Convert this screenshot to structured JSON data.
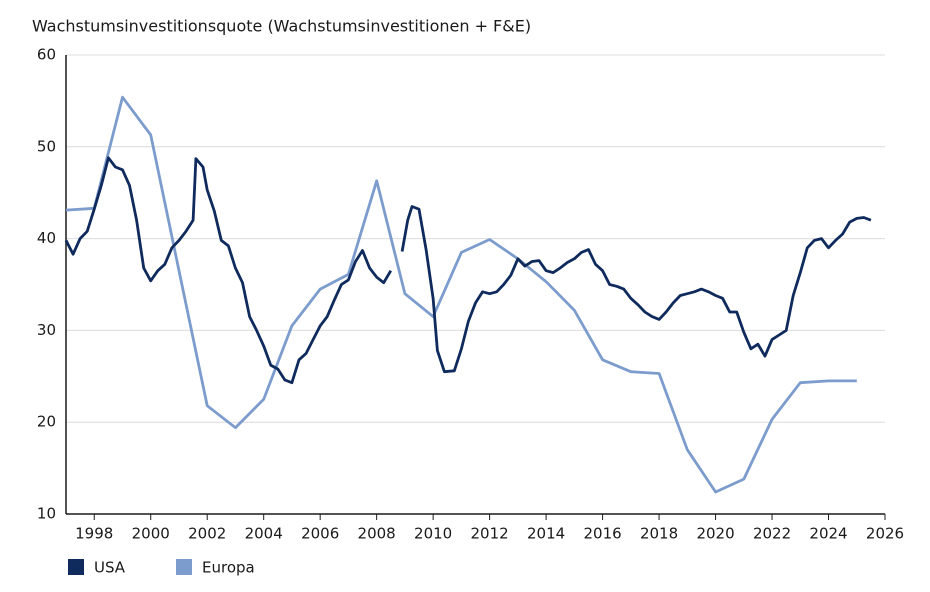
{
  "chart_data": {
    "type": "line",
    "title": "Wachstumsinvestitionsquote (Wachstumsinvestitionen + F&E)",
    "xlim": [
      1997,
      2026
    ],
    "xticks": [
      1998,
      2000,
      2002,
      2004,
      2006,
      2008,
      2010,
      2012,
      2014,
      2016,
      2018,
      2020,
      2022,
      2024,
      2026
    ],
    "ylim": [
      10,
      60
    ],
    "yticks": [
      10,
      20,
      30,
      40,
      50,
      60
    ],
    "grid": true,
    "series": [
      {
        "name": "USA",
        "color": "#0f2a5c",
        "x": [
          1997.0,
          1997.25,
          1997.5,
          1997.75,
          1998.0,
          1998.25,
          1998.5,
          1998.75,
          1999.0,
          1999.25,
          1999.5,
          1999.75,
          2000.0,
          2000.25,
          2000.5,
          2000.75,
          2001.0,
          2001.25,
          2001.5,
          2001.6,
          2001.85,
          2002.0,
          2002.25,
          2002.5,
          2002.75,
          2003.0,
          2003.25,
          2003.5,
          2003.75,
          2004.0,
          2004.25,
          2004.5,
          2004.75,
          2005.0,
          2005.25,
          2005.5,
          2005.75,
          2006.0,
          2006.25,
          2006.5,
          2006.75,
          2007.0,
          2007.25,
          2007.5,
          2007.75,
          2008.0,
          2008.25,
          2008.5,
          2008.75,
          2008.9,
          2009.1,
          2009.25,
          2009.5,
          2009.75,
          2010.0,
          2010.15,
          2010.4,
          2010.75,
          2011.0,
          2011.25,
          2011.5,
          2011.75,
          2012.0,
          2012.25,
          2012.5,
          2012.75,
          2013.0,
          2013.25,
          2013.5,
          2013.75,
          2014.0,
          2014.25,
          2014.5,
          2014.75,
          2015.0,
          2015.25,
          2015.5,
          2015.75,
          2016.0,
          2016.25,
          2016.5,
          2016.75,
          2017.0,
          2017.25,
          2017.5,
          2017.75,
          2018.0,
          2018.25,
          2018.5,
          2018.75,
          2019.0,
          2019.25,
          2019.5,
          2019.75,
          2020.0,
          2020.25,
          2020.5,
          2020.75,
          2021.0,
          2021.25,
          2021.5,
          2021.75,
          2022.0,
          2022.25,
          2022.5,
          2022.75,
          2023.0,
          2023.25,
          2023.5,
          2023.75,
          2024.0,
          2024.25,
          2024.5,
          2024.75,
          2025.0,
          2025.25,
          2025.5
        ],
        "values": [
          39.8,
          38.3,
          40.0,
          40.8,
          43.2,
          45.8,
          48.8,
          47.8,
          47.5,
          45.8,
          42.0,
          36.8,
          35.4,
          36.5,
          37.2,
          39.0,
          39.8,
          40.8,
          42.0,
          48.7,
          47.8,
          45.3,
          43.0,
          39.8,
          39.2,
          36.8,
          35.2,
          31.5,
          30.0,
          28.3,
          26.2,
          25.8,
          24.6,
          24.3,
          26.8,
          27.5,
          29.0,
          30.5,
          31.5,
          33.3,
          35.0,
          35.5,
          37.5,
          38.7,
          36.8,
          35.8,
          35.2,
          36.5,
          null,
          38.6,
          42.0,
          43.5,
          43.2,
          38.8,
          33.5,
          27.8,
          25.5,
          25.6,
          28.0,
          31.0,
          33.0,
          34.2,
          34.0,
          34.2,
          35.0,
          36.0,
          37.8,
          37.0,
          37.5,
          37.6,
          36.5,
          36.3,
          36.8,
          37.4,
          37.8,
          38.5,
          38.8,
          37.2,
          36.5,
          35.0,
          34.8,
          34.5,
          33.5,
          32.8,
          32.0,
          31.5,
          31.2,
          32.0,
          33.0,
          33.8,
          34.0,
          34.2,
          34.5,
          34.2,
          33.8,
          33.5,
          32.0,
          32.0,
          29.8,
          28.0,
          28.5,
          27.2,
          29.0,
          29.5,
          30.0,
          33.8,
          36.3,
          39.0,
          39.8,
          40.0,
          39.0,
          39.8,
          40.5,
          41.8,
          42.2,
          42.3,
          42.0
        ]
      },
      {
        "name": "Europa",
        "color": "#7b9ccc",
        "x": [
          1997,
          1998,
          1999,
          2000,
          2001,
          2002,
          2003,
          2004,
          2005,
          2006,
          2007,
          2008,
          2009,
          2010,
          2011,
          2012,
          2013,
          2014,
          2015,
          2016,
          2017,
          2018,
          2019,
          2020,
          2021,
          2022,
          2023,
          2024,
          2025
        ],
        "values": [
          43.1,
          43.3,
          55.4,
          51.3,
          36.5,
          21.8,
          19.4,
          22.5,
          30.5,
          34.5,
          36.1,
          46.3,
          34.0,
          31.5,
          38.5,
          39.9,
          37.8,
          35.3,
          32.2,
          26.8,
          25.5,
          25.3,
          17.0,
          12.4,
          13.8,
          20.3,
          24.3,
          24.5,
          24.5
        ]
      }
    ]
  }
}
